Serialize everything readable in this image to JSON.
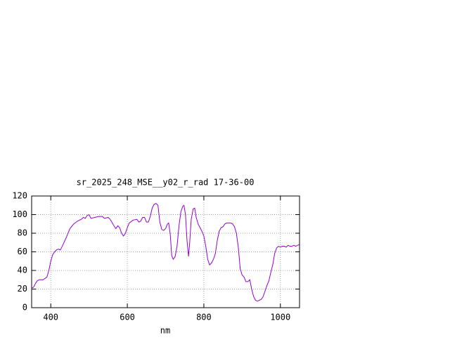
{
  "chart_data": {
    "type": "line",
    "title": "sr_2025_248_MSE__y02_r_rad 17-36-00",
    "x_label": "nm",
    "x": [
      350,
      355,
      360,
      365,
      370,
      380,
      390,
      395,
      400,
      405,
      410,
      415,
      420,
      425,
      430,
      440,
      450,
      460,
      470,
      480,
      485,
      490,
      495,
      500,
      505,
      515,
      525,
      535,
      540,
      550,
      555,
      565,
      570,
      575,
      580,
      585,
      590,
      595,
      600,
      605,
      615,
      625,
      630,
      635,
      640,
      645,
      650,
      655,
      660,
      665,
      670,
      675,
      680,
      685,
      690,
      695,
      700,
      705,
      708,
      712,
      716,
      720,
      725,
      730,
      735,
      740,
      745,
      748,
      752,
      756,
      760,
      763,
      767,
      772,
      776,
      780,
      785,
      790,
      795,
      800,
      805,
      810,
      815,
      820,
      825,
      830,
      835,
      840,
      845,
      850,
      855,
      860,
      870,
      875,
      880,
      885,
      890,
      895,
      900,
      905,
      910,
      915,
      920,
      925,
      930,
      935,
      940,
      945,
      950,
      955,
      960,
      965,
      970,
      975,
      980,
      985,
      990,
      995,
      1000,
      1005,
      1010,
      1015,
      1020,
      1025,
      1030,
      1035,
      1040,
      1045,
      1050
    ],
    "series": [
      {
        "name": "",
        "color": "#9400d3",
        "values": [
          21,
          22,
          26,
          29,
          30,
          30,
          33,
          40,
          50,
          57,
          60,
          62,
          63,
          62,
          66,
          75,
          85,
          90,
          93,
          95,
          97,
          96,
          99,
          100,
          96,
          97,
          98,
          98,
          96,
          97,
          95,
          88,
          85,
          88,
          86,
          80,
          77,
          80,
          86,
          91,
          94,
          95,
          92,
          93,
          97,
          97,
          92,
          92,
          98,
          107,
          111,
          112,
          110,
          92,
          84,
          83,
          85,
          90,
          91,
          80,
          56,
          52,
          55,
          66,
          88,
          103,
          109,
          110,
          100,
          72,
          55,
          70,
          95,
          106,
          107,
          97,
          90,
          86,
          82,
          77,
          66,
          52,
          46,
          48,
          52,
          58,
          72,
          82,
          86,
          87,
          90,
          91,
          91,
          90,
          87,
          80,
          65,
          42,
          35,
          33,
          28,
          28,
          30,
          20,
          12,
          8,
          7,
          8,
          9,
          12,
          18,
          24,
          29,
          38,
          46,
          58,
          64,
          66,
          65,
          66,
          66,
          65,
          67,
          66,
          66,
          67,
          66,
          67,
          68
        ]
      }
    ],
    "xlim": [
      350,
      1050
    ],
    "ylim": [
      0,
      120
    ],
    "xticks": [
      400,
      600,
      800,
      1000
    ],
    "yticks": [
      0,
      20,
      40,
      60,
      80,
      100,
      120
    ],
    "grid": true
  }
}
